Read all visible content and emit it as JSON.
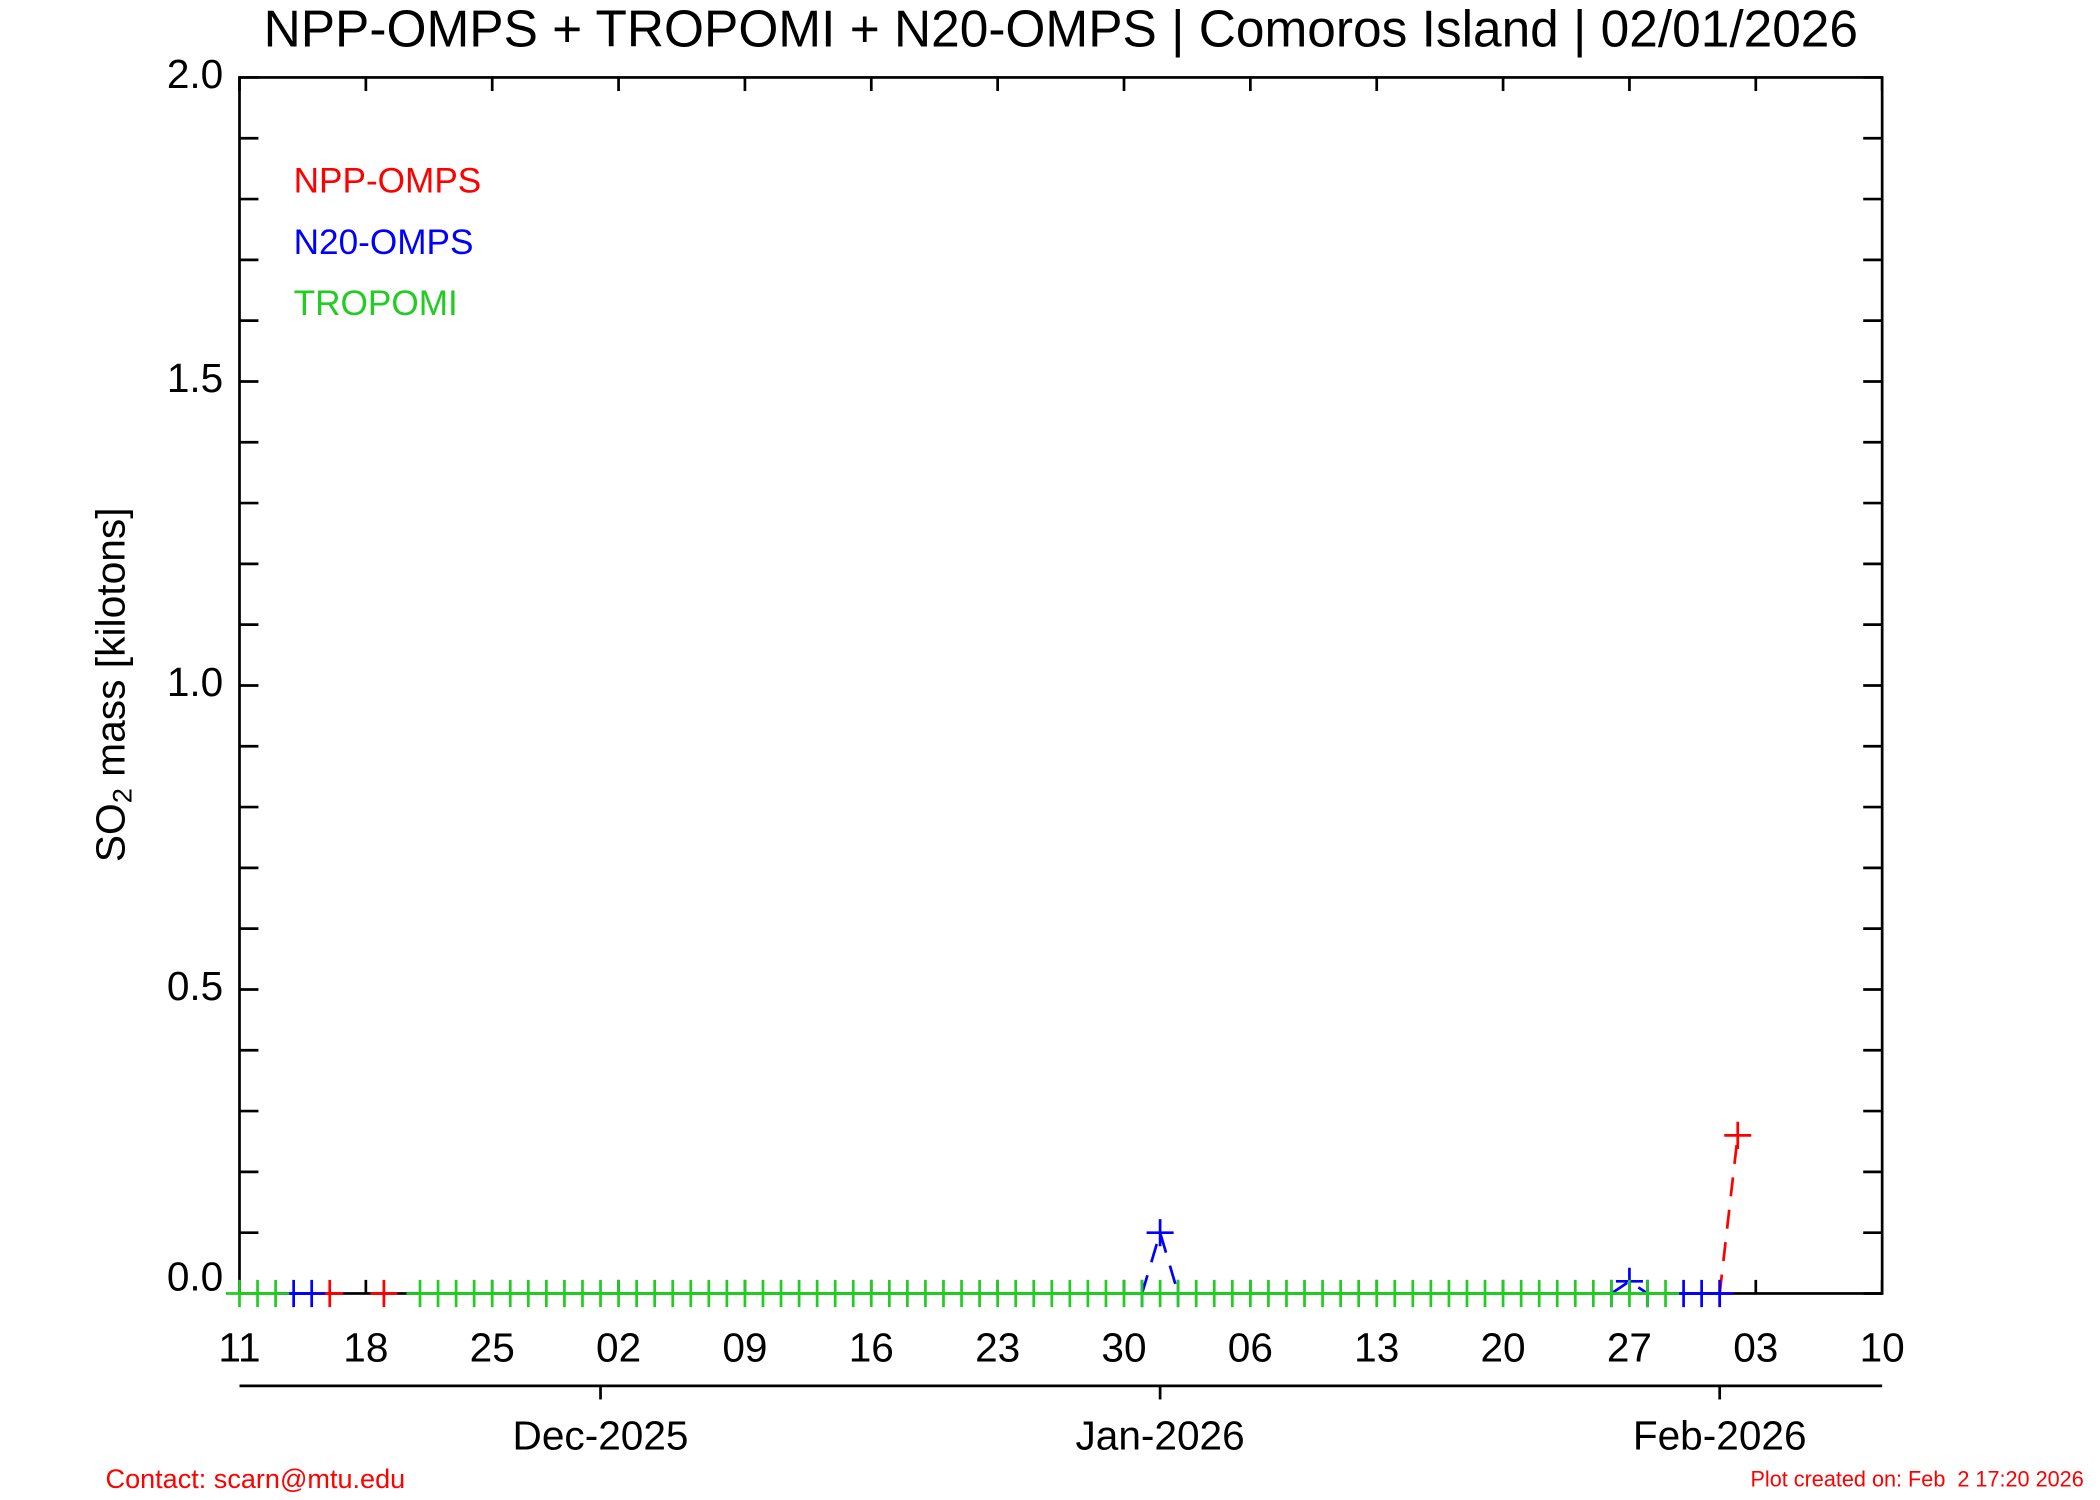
{
  "chart_data": {
    "type": "line",
    "title": "NPP-OMPS + TROPOMI + N20-OMPS | Comoros Island | 02/01/2026",
    "ylabel": [
      "SO",
      "2",
      " mass [kilotons]"
    ],
    "x": [
      "2025-11-11",
      "2025-11-12",
      "2025-11-13",
      "2025-11-14",
      "2025-11-15",
      "2025-11-16",
      "2025-11-17",
      "2025-11-18",
      "2025-11-19",
      "2025-11-20",
      "2025-11-21",
      "2025-11-22",
      "2025-11-23",
      "2025-11-24",
      "2025-11-25",
      "2025-11-26",
      "2025-11-27",
      "2025-11-28",
      "2025-11-29",
      "2025-11-30",
      "2025-12-01",
      "2025-12-02",
      "2025-12-03",
      "2025-12-04",
      "2025-12-05",
      "2025-12-06",
      "2025-12-07",
      "2025-12-08",
      "2025-12-09",
      "2025-12-10",
      "2025-12-11",
      "2025-12-12",
      "2025-12-13",
      "2025-12-14",
      "2025-12-15",
      "2025-12-16",
      "2025-12-17",
      "2025-12-18",
      "2025-12-19",
      "2025-12-20",
      "2025-12-21",
      "2025-12-22",
      "2025-12-23",
      "2025-12-24",
      "2025-12-25",
      "2025-12-26",
      "2025-12-27",
      "2025-12-28",
      "2025-12-29",
      "2025-12-30",
      "2025-12-31",
      "2026-01-01",
      "2026-01-02",
      "2026-01-03",
      "2026-01-04",
      "2026-01-05",
      "2026-01-06",
      "2026-01-07",
      "2026-01-08",
      "2026-01-09",
      "2026-01-10",
      "2026-01-11",
      "2026-01-12",
      "2026-01-13",
      "2026-01-14",
      "2026-01-15",
      "2026-01-16",
      "2026-01-17",
      "2026-01-18",
      "2026-01-19",
      "2026-01-20",
      "2026-01-21",
      "2026-01-22",
      "2026-01-23",
      "2026-01-24",
      "2026-01-25",
      "2026-01-26",
      "2026-01-27",
      "2026-01-28",
      "2026-01-29",
      "2026-01-30",
      "2026-01-31",
      "2026-02-01",
      "2026-02-02"
    ],
    "series": [
      {
        "name": "NPP-OMPS",
        "color": "#ff0000",
        "linestyle": "dashed",
        "values": [
          null,
          null,
          null,
          null,
          null,
          0,
          null,
          null,
          0,
          null,
          null,
          null,
          null,
          null,
          null,
          null,
          null,
          null,
          null,
          null,
          null,
          null,
          null,
          null,
          null,
          null,
          null,
          null,
          null,
          null,
          null,
          null,
          null,
          null,
          null,
          null,
          null,
          null,
          null,
          null,
          null,
          null,
          null,
          null,
          null,
          null,
          null,
          null,
          null,
          null,
          null,
          null,
          null,
          null,
          null,
          null,
          null,
          null,
          null,
          null,
          null,
          null,
          null,
          null,
          null,
          null,
          null,
          null,
          null,
          null,
          null,
          null,
          null,
          null,
          null,
          null,
          null,
          null,
          null,
          null,
          null,
          null,
          0,
          0.26
        ]
      },
      {
        "name": "N20-OMPS",
        "color": "#0000ff",
        "linestyle": "dashed",
        "values": [
          null,
          null,
          null,
          0,
          0,
          null,
          null,
          null,
          null,
          null,
          null,
          null,
          null,
          null,
          null,
          null,
          null,
          null,
          null,
          null,
          null,
          null,
          null,
          null,
          null,
          null,
          null,
          null,
          null,
          null,
          null,
          null,
          null,
          null,
          null,
          null,
          null,
          null,
          null,
          null,
          null,
          null,
          null,
          null,
          null,
          null,
          null,
          null,
          null,
          null,
          0,
          0.1,
          0,
          null,
          null,
          null,
          null,
          null,
          null,
          null,
          null,
          null,
          null,
          null,
          null,
          null,
          null,
          null,
          null,
          null,
          null,
          null,
          null,
          null,
          null,
          null,
          0,
          0.02,
          0,
          null,
          0,
          0,
          0,
          null
        ]
      },
      {
        "name": "TROPOMI",
        "color": "#22cc22",
        "linestyle": "solid",
        "values": [
          0,
          0,
          0,
          null,
          null,
          null,
          null,
          null,
          null,
          null,
          0,
          0,
          0,
          0,
          0,
          0,
          0,
          0,
          0,
          0,
          0,
          0,
          0,
          0,
          0,
          0,
          0,
          0,
          0,
          0,
          0,
          0,
          0,
          0,
          0,
          0,
          0,
          0,
          0,
          0,
          0,
          0,
          0,
          0,
          0,
          0,
          0,
          0,
          0,
          0,
          0,
          0,
          0,
          0,
          0,
          0,
          0,
          0,
          0,
          0,
          0,
          0,
          0,
          0,
          0,
          0,
          0,
          0,
          0,
          0,
          0,
          0,
          0,
          0,
          0,
          0,
          0,
          0,
          0,
          0,
          null,
          null,
          null,
          null
        ]
      }
    ],
    "xlim": [
      "2025-11-11",
      "2026-02-10"
    ],
    "xticks": [
      {
        "value": "2025-11-11",
        "label": "11"
      },
      {
        "value": "2025-11-18",
        "label": "18"
      },
      {
        "value": "2025-11-25",
        "label": "25"
      },
      {
        "value": "2025-12-02",
        "label": "02"
      },
      {
        "value": "2025-12-09",
        "label": "09"
      },
      {
        "value": "2025-12-16",
        "label": "16"
      },
      {
        "value": "2025-12-23",
        "label": "23"
      },
      {
        "value": "2025-12-30",
        "label": "30"
      },
      {
        "value": "2026-01-06",
        "label": "06"
      },
      {
        "value": "2026-01-13",
        "label": "13"
      },
      {
        "value": "2026-01-20",
        "label": "20"
      },
      {
        "value": "2026-01-27",
        "label": "27"
      },
      {
        "value": "2026-02-03",
        "label": "03"
      },
      {
        "value": "2026-02-10",
        "label": "10"
      }
    ],
    "month_ticks": [
      {
        "value": "2025-12-01",
        "label": "Dec-2025"
      },
      {
        "value": "2026-01-01",
        "label": "Jan-2026"
      },
      {
        "value": "2026-02-01",
        "label": "Feb-2026"
      }
    ],
    "ylim": [
      0,
      2
    ],
    "yticks": [
      {
        "value": 0,
        "label": "0.0"
      },
      {
        "value": 0.5,
        "label": "0.5"
      },
      {
        "value": 1,
        "label": "1.0"
      },
      {
        "value": 1.5,
        "label": "1.5"
      },
      {
        "value": 2,
        "label": "2.0"
      }
    ],
    "yminorticks": [
      0.1,
      0.2,
      0.3,
      0.4,
      0.6,
      0.7,
      0.8,
      0.9,
      1.1,
      1.2,
      1.3,
      1.4,
      1.6,
      1.7,
      1.8,
      1.9
    ],
    "legend": "upper left",
    "footer_left": "Contact: scarn@mtu.edu",
    "footer_right": "Plot created on: Feb  2 17:20 2026"
  }
}
